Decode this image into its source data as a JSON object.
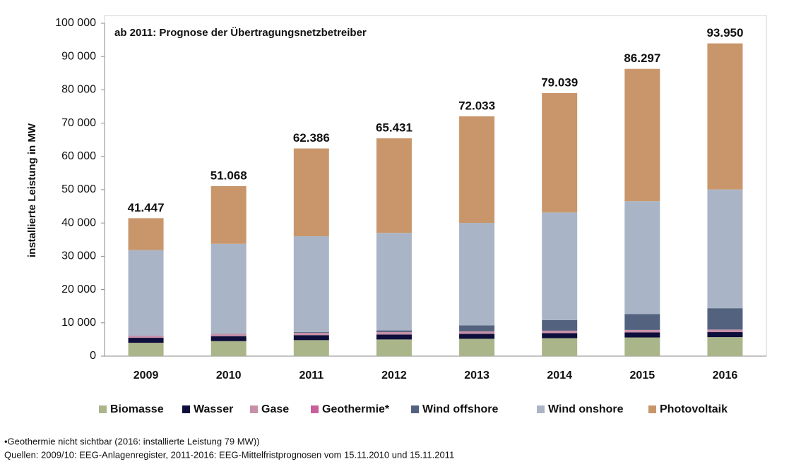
{
  "chart_data": {
    "type": "stacked_bar",
    "annotation": "ab 2011: Prognose der Übertragungsnetzbetreiber",
    "y_label": "installierte Leistung in MW",
    "categories": [
      "2009",
      "2010",
      "2011",
      "2012",
      "2013",
      "2014",
      "2015",
      "2016"
    ],
    "series": [
      {
        "name": "Biomasse",
        "color": "#aab58a",
        "values": [
          4000,
          4500,
          4800,
          5000,
          5200,
          5400,
          5600,
          5700
        ]
      },
      {
        "name": "Wasser",
        "color": "#0e0e3c",
        "values": [
          1500,
          1500,
          1500,
          1500,
          1500,
          1500,
          1500,
          1500
        ]
      },
      {
        "name": "Gase",
        "color": "#c890a8",
        "values": [
          600,
          650,
          700,
          700,
          700,
          700,
          700,
          700
        ]
      },
      {
        "name": "Geothermie*",
        "color": "#c8609a",
        "values": [
          7,
          7,
          10,
          20,
          30,
          40,
          60,
          79
        ]
      },
      {
        "name": "Wind offshore",
        "color": "#53637f",
        "values": [
          35,
          80,
          200,
          500,
          1800,
          3200,
          4800,
          6400
        ]
      },
      {
        "name": "Wind onshore",
        "color": "#a9b5c6",
        "values": [
          25700,
          27000,
          28800,
          29300,
          30800,
          32300,
          33900,
          35700
        ]
      },
      {
        "name": "Photovoltaik",
        "color": "#c9966b",
        "values": [
          9605,
          17331,
          26376,
          28411,
          32003,
          35899,
          39737,
          43871
        ]
      }
    ],
    "totals": {
      "values": [
        41447,
        51068,
        62386,
        65431,
        72033,
        79039,
        86297,
        93950
      ],
      "value_labels": [
        "41.447",
        "51.068",
        "62.386",
        "65.431",
        "72.033",
        "79.039",
        "86.297",
        "93.950"
      ]
    },
    "ylim": [
      0,
      100000
    ],
    "yticks": [
      0,
      {
        "value": 10000,
        "label": "10 000"
      },
      {
        "value": 20000,
        "label": "20 000"
      },
      {
        "value": 30000,
        "label": "30 000"
      },
      {
        "value": 40000,
        "label": "40 000"
      },
      {
        "value": 50000,
        "label": "50 000"
      },
      {
        "value": 60000,
        "label": "60 000"
      },
      {
        "value": 70000,
        "label": "70 000"
      },
      {
        "value": 80000,
        "label": "80 000"
      },
      {
        "value": 90000,
        "label": "90 000"
      },
      {
        "value": 100000,
        "label": "100 000"
      }
    ],
    "legend": "bottom",
    "footnotes": [
      "•Geothermie nicht sichtbar (2016: installierte Leistung 79 MW))",
      "Quellen: 2009/10: EEG-Anlagenregister, 2011-2016: EEG-Mittelfristprognosen vom 15.11.2010 und 15.11.2011"
    ]
  }
}
